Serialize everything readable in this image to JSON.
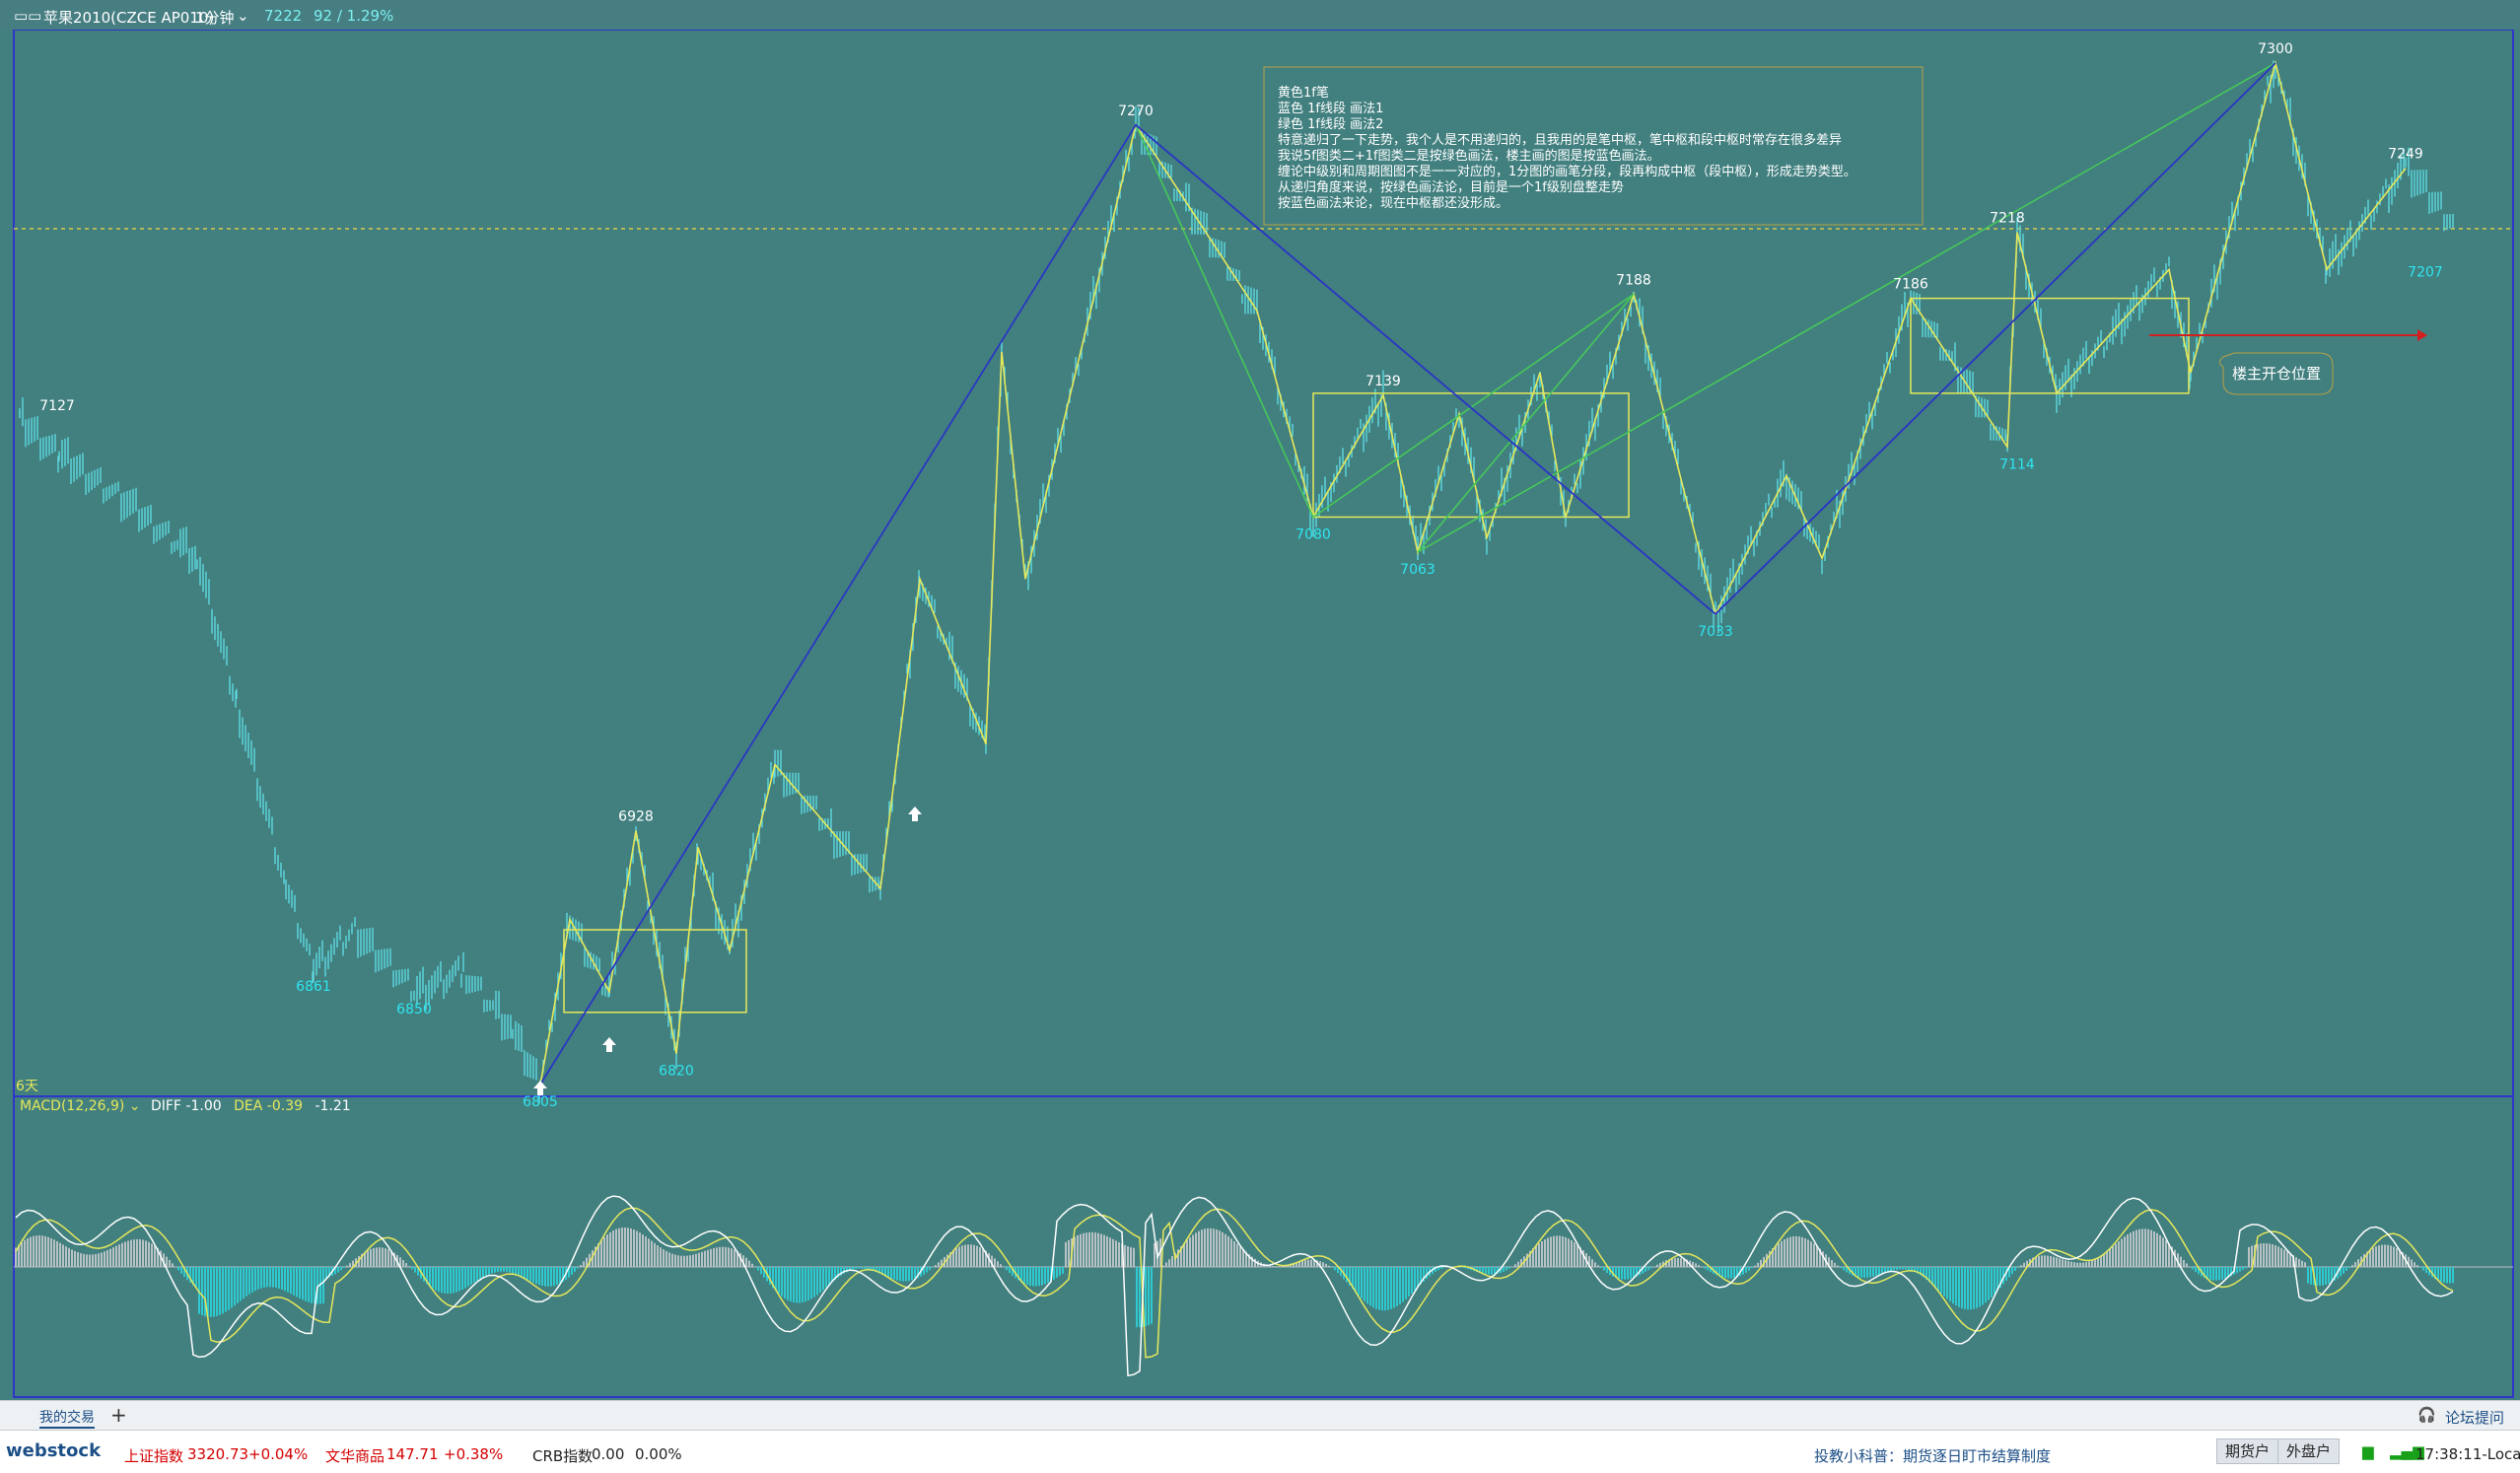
{
  "window": {
    "title": "苹果2010(CZCE AP010)",
    "period": "1分钟",
    "last_price": "7222",
    "change": "92 / 1.29%"
  },
  "note_box": {
    "lines": [
      "黄色1f笔",
      "蓝色    1f线段   画法1",
      "绿色    1f线段   画法2",
      "特意递归了一下走势，我个人是不用递归的，且我用的是笔中枢，笔中枢和段中枢时常存在很多差异",
      "我说5f图类二+1f图类二是按绿色画法，楼主画的图是按蓝色画法。",
      "缠论中级别和周期图图不是一一对应的，1分图的画笔分段，段再构成中枢（段中枢），形成走势类型。",
      "从递归角度来说，按绿色画法论，目前是一个1f级别盘整走势",
      "按蓝色画法来论，现在中枢都还没形成。"
    ]
  },
  "callout": {
    "text": "楼主开仓位置"
  },
  "left_label": "6天",
  "macd": {
    "name": "MACD(12,26,9)",
    "diff_label": "DIFF",
    "diff": "-1.00",
    "dea_label": "DEA",
    "dea": "-0.39",
    "macd_val": "-1.21"
  },
  "bottom_tabs": {
    "tab1": "我的交易",
    "add": "+",
    "forum": "论坛提问"
  },
  "status": {
    "brand": "webstock",
    "idx1_name": "上证指数",
    "idx1_val": "3320.73",
    "idx1_chg": "+0.04%",
    "idx2_name": "文华商品",
    "idx2_val": "147.71",
    "idx2_chg": "+0.38%",
    "idx3_name": "CRB指数",
    "idx3_val": "0.00",
    "idx3_chg": "0.00%",
    "ticker": "投教小科普：期货逐日盯市结算制度",
    "btn1": "期货户",
    "btn2": "外盘户",
    "time": "17:38:11-Local"
  },
  "colors": {
    "background": "#427f7f",
    "frame": "#2f36c8",
    "candle": "#5ed9e0",
    "bi": "#e6e85a",
    "segment_blue": "#2a34c4",
    "segment_green": "#46c85a",
    "label_low": "#2ee6f0",
    "label_high": "#ffffff",
    "macd_pos": "#b9c2c4",
    "macd_neg": "#2fc9d0",
    "dea_line": "#e6e85a",
    "diff_line": "#ffffff",
    "arrow_red": "#d22020"
  },
  "chart_data": {
    "type": "candlestick",
    "y_axis": "price",
    "ref_line_price": 7222,
    "turning_points": [
      {
        "price": 7127,
        "label": "7127"
      },
      {
        "price": 6861,
        "label": "6861"
      },
      {
        "price": 6850,
        "label": "6850"
      },
      {
        "price": 6805,
        "label": "6805"
      },
      {
        "price": 6928,
        "label": "6928"
      },
      {
        "price": 6820,
        "label": "6820"
      },
      {
        "price": 7270,
        "label": "7270"
      },
      {
        "price": 7080,
        "label": "7080"
      },
      {
        "price": 7139,
        "label": "7139"
      },
      {
        "price": 7063,
        "label": "7063"
      },
      {
        "price": 7188,
        "label": "7188"
      },
      {
        "price": 7033,
        "label": "7033"
      },
      {
        "price": 7186,
        "label": "7186"
      },
      {
        "price": 7218,
        "label": "7218"
      },
      {
        "price": 7114,
        "label": "7114"
      },
      {
        "price": 7300,
        "label": "7300"
      },
      {
        "price": 7249,
        "label": "7249"
      },
      {
        "price": 7207,
        "label": "7207"
      }
    ],
    "bi_path": [
      6805,
      6885,
      6850,
      6928,
      6820,
      6920,
      6870,
      6960,
      6900,
      7050,
      6970,
      7160,
      7050,
      7270,
      7180,
      7080,
      7139,
      7063,
      7130,
      7070,
      7150,
      7080,
      7188,
      7033,
      7100,
      7060,
      7186,
      7114,
      7218,
      7140,
      7200,
      7150,
      7300,
      7200,
      7249
    ],
    "segment_blue": [
      6805,
      7270,
      7033,
      7300
    ],
    "segment_green": [
      6805,
      7270,
      7080,
      7188,
      7063,
      7300
    ],
    "zhongshu": [
      {
        "low": 6840,
        "high": 6880
      },
      {
        "low": 7080,
        "high": 7140
      },
      {
        "low": 7140,
        "high": 7186
      }
    ],
    "macd_series": {
      "names": [
        "DIFF",
        "DEA",
        "MACD"
      ],
      "last": {
        "DIFF": -1.0,
        "DEA": -0.39,
        "MACD": -1.21
      }
    }
  }
}
